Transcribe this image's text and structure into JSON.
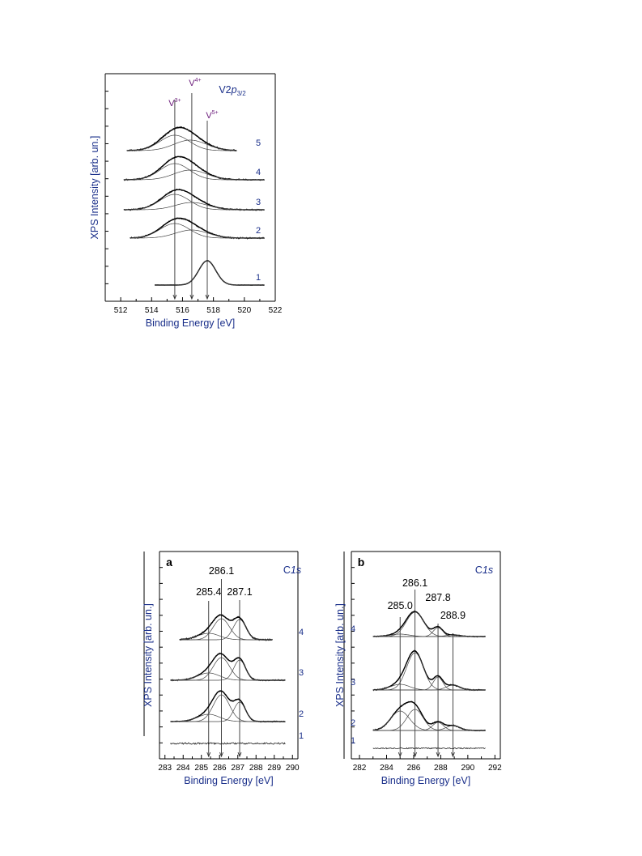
{
  "chart_data": [
    {
      "type": "line",
      "panel_id": "",
      "core_level_parts": [
        "V2",
        "p",
        "3/2"
      ],
      "xlabel": "Binding Energy [eV]",
      "ylabel": "XPS Intensity [arb. un.]",
      "xlim": [
        511,
        522
      ],
      "xticks": [
        512,
        514,
        516,
        518,
        520,
        522
      ],
      "markers": [
        {
          "label_main": "V",
          "label_sup": "3+",
          "energy": 515.5
        },
        {
          "label_main": "V",
          "label_sup": "4+",
          "energy": 516.6
        },
        {
          "label_main": "V",
          "label_sup": "5+",
          "energy": 517.6
        }
      ],
      "series": [
        {
          "curve_label": "1",
          "x_range": [
            514.2,
            521.3
          ],
          "components": [
            {
              "center": 517.6,
              "height": 30,
              "width": 0.55
            }
          ],
          "noise": 0.4
        },
        {
          "curve_label": "2",
          "x_range": [
            512.6,
            521.3
          ],
          "components": [
            {
              "center": 515.5,
              "height": 18,
              "width": 0.95
            },
            {
              "center": 516.6,
              "height": 10,
              "width": 1.05
            }
          ],
          "noise": 1.1
        },
        {
          "curve_label": "3",
          "x_range": [
            512.2,
            521.3
          ],
          "components": [
            {
              "center": 515.5,
              "height": 19,
              "width": 0.95
            },
            {
              "center": 516.6,
              "height": 9,
              "width": 1.05
            }
          ],
          "noise": 1.0
        },
        {
          "curve_label": "4",
          "x_range": [
            512.2,
            521.3
          ],
          "components": [
            {
              "center": 515.5,
              "height": 20,
              "width": 0.95
            },
            {
              "center": 516.5,
              "height": 12,
              "width": 1.05
            }
          ],
          "noise": 1.0
        },
        {
          "curve_label": "5",
          "x_range": [
            512.4,
            519.5
          ],
          "components": [
            {
              "center": 515.5,
              "height": 19,
              "width": 0.95
            },
            {
              "center": 516.5,
              "height": 13,
              "width": 1.05
            }
          ],
          "noise": 1.2
        }
      ]
    },
    {
      "type": "line",
      "panel_id": "a",
      "core_level_parts": [
        "C",
        "1s",
        ""
      ],
      "xlabel": "Binding Energy [eV]",
      "ylabel": "XPS Intensity [arb. un.]",
      "xlim": [
        282.7,
        290.3
      ],
      "xticks": [
        283,
        284,
        285,
        286,
        287,
        288,
        289,
        290
      ],
      "markers": [
        {
          "label_main": "285.4",
          "label_sup": "",
          "energy": 285.4
        },
        {
          "label_main": "286.1",
          "label_sup": "",
          "energy": 286.1
        },
        {
          "label_main": "287.1",
          "label_sup": "",
          "energy": 287.1
        }
      ],
      "series": [
        {
          "curve_label": "1",
          "x_range": [
            283.3,
            289.6
          ],
          "components": [],
          "noise": 1.0
        },
        {
          "curve_label": "2",
          "x_range": [
            283.3,
            289.6
          ],
          "components": [
            {
              "center": 285.4,
              "height": 9,
              "width": 0.6
            },
            {
              "center": 286.1,
              "height": 33,
              "width": 0.45
            },
            {
              "center": 287.1,
              "height": 24,
              "width": 0.32
            }
          ],
          "noise": 0.9
        },
        {
          "curve_label": "3",
          "x_range": [
            283.3,
            289.6
          ],
          "components": [
            {
              "center": 285.4,
              "height": 9,
              "width": 0.6
            },
            {
              "center": 286.1,
              "height": 28,
              "width": 0.45
            },
            {
              "center": 287.1,
              "height": 25,
              "width": 0.32
            }
          ],
          "noise": 0.9
        },
        {
          "curve_label": "4",
          "x_range": [
            283.8,
            288.9
          ],
          "components": [
            {
              "center": 285.4,
              "height": 8,
              "width": 0.6
            },
            {
              "center": 286.1,
              "height": 26,
              "width": 0.45
            },
            {
              "center": 287.1,
              "height": 25,
              "width": 0.35
            }
          ],
          "noise": 1.1
        }
      ]
    },
    {
      "type": "line",
      "panel_id": "b",
      "core_level_parts": [
        "C",
        "1s",
        ""
      ],
      "xlabel": "Binding Energy [eV]",
      "ylabel": "XPS Intensity [arb. un.]",
      "xlim": [
        281.4,
        292.4
      ],
      "xticks": [
        282,
        284,
        286,
        288,
        290,
        292
      ],
      "markers": [
        {
          "label_main": "285.0",
          "label_sup": "",
          "energy": 285.0
        },
        {
          "label_main": "286.1",
          "label_sup": "",
          "energy": 286.1
        },
        {
          "label_main": "287.8",
          "label_sup": "",
          "energy": 287.8
        },
        {
          "label_main": "288.9",
          "label_sup": "",
          "energy": 288.9
        }
      ],
      "series": [
        {
          "curve_label": "1",
          "x_range": [
            283.0,
            291.3
          ],
          "components": [],
          "noise": 0.7
        },
        {
          "curve_label": "2",
          "x_range": [
            283.0,
            291.3
          ],
          "components": [
            {
              "center": 285.0,
              "height": 24,
              "width": 0.7
            },
            {
              "center": 286.1,
              "height": 26,
              "width": 0.6
            },
            {
              "center": 287.8,
              "height": 10,
              "width": 0.4
            },
            {
              "center": 288.9,
              "height": 6,
              "width": 0.5
            }
          ],
          "noise": 0.9
        },
        {
          "curve_label": "3",
          "x_range": [
            283.0,
            291.3
          ],
          "components": [
            {
              "center": 285.0,
              "height": 7,
              "width": 0.7
            },
            {
              "center": 286.1,
              "height": 46,
              "width": 0.62
            },
            {
              "center": 287.8,
              "height": 16,
              "width": 0.35
            },
            {
              "center": 288.9,
              "height": 6,
              "width": 0.5
            }
          ],
          "noise": 0.9
        },
        {
          "curve_label": "4",
          "x_range": [
            283.0,
            291.3
          ],
          "components": [
            {
              "center": 285.0,
              "height": 3,
              "width": 0.7
            },
            {
              "center": 286.1,
              "height": 30,
              "width": 0.65
            },
            {
              "center": 287.8,
              "height": 11,
              "width": 0.35
            },
            {
              "center": 288.9,
              "height": 2,
              "width": 0.5
            }
          ],
          "noise": 0.8
        }
      ]
    }
  ]
}
